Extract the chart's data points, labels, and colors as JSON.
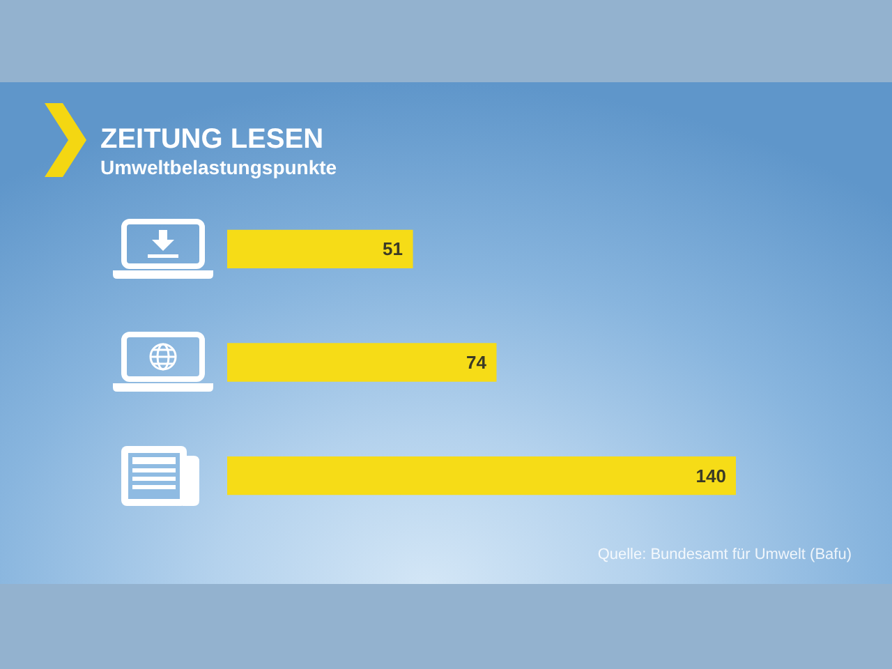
{
  "chart_data": {
    "type": "bar",
    "orientation": "horizontal",
    "title": "ZEITUNG LESEN",
    "subtitle": "Umweltbelastungspunkte",
    "categories": [
      null,
      null,
      null
    ],
    "values": [
      51,
      74,
      140
    ],
    "color": "#f6dc17",
    "data_labels": true,
    "tick_labels": false,
    "annotations": [
      "Quelle: Bundesamt für Umwelt (Bafu)"
    ]
  }
}
